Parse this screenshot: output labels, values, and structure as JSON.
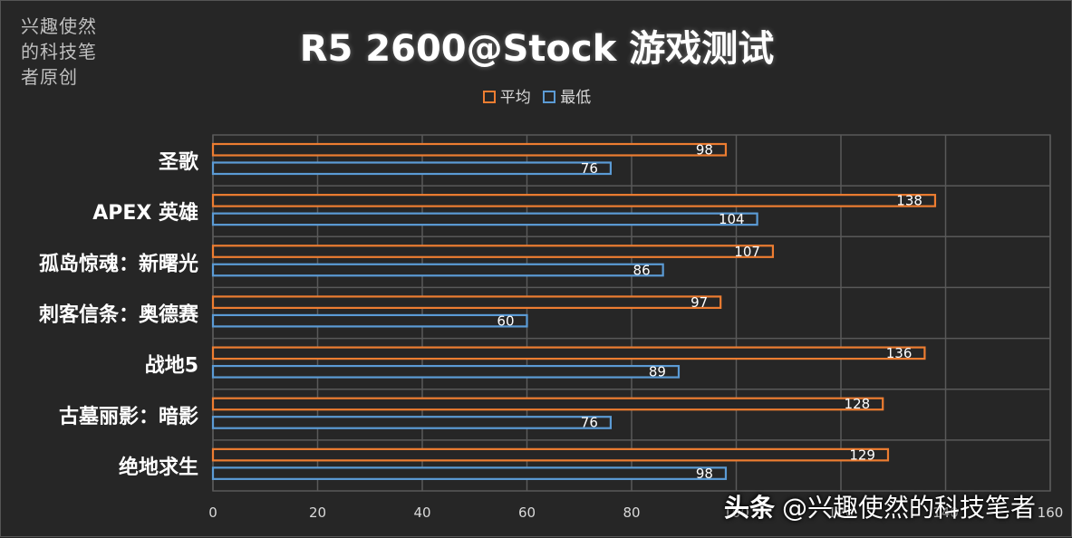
{
  "watermark": "兴趣使然的科技笔者原创",
  "brand": {
    "name": "头条",
    "handle": "@兴趣使然的科技笔者"
  },
  "colors": {
    "avg": "#ed7d31",
    "min": "#5b9bd5",
    "grid": "#595959",
    "background": "#262626"
  },
  "chart_data": {
    "type": "bar",
    "orientation": "horizontal",
    "title": "R5 2600@Stock 游戏测试",
    "categories": [
      "圣歌",
      "APEX 英雄",
      "孤岛惊魂：新曙光",
      "刺客信条：奥德赛",
      "战地5",
      "古墓丽影：暗影",
      "绝地求生"
    ],
    "series": [
      {
        "name": "平均",
        "values": [
          98,
          138,
          107,
          97,
          136,
          128,
          129
        ]
      },
      {
        "name": "最低",
        "values": [
          76,
          104,
          86,
          60,
          89,
          76,
          98
        ]
      }
    ],
    "xlim": [
      0,
      160
    ],
    "xticks": [
      0,
      20,
      40,
      60,
      80,
      100,
      120,
      140,
      160
    ],
    "grid": true,
    "legend": "top-center"
  }
}
